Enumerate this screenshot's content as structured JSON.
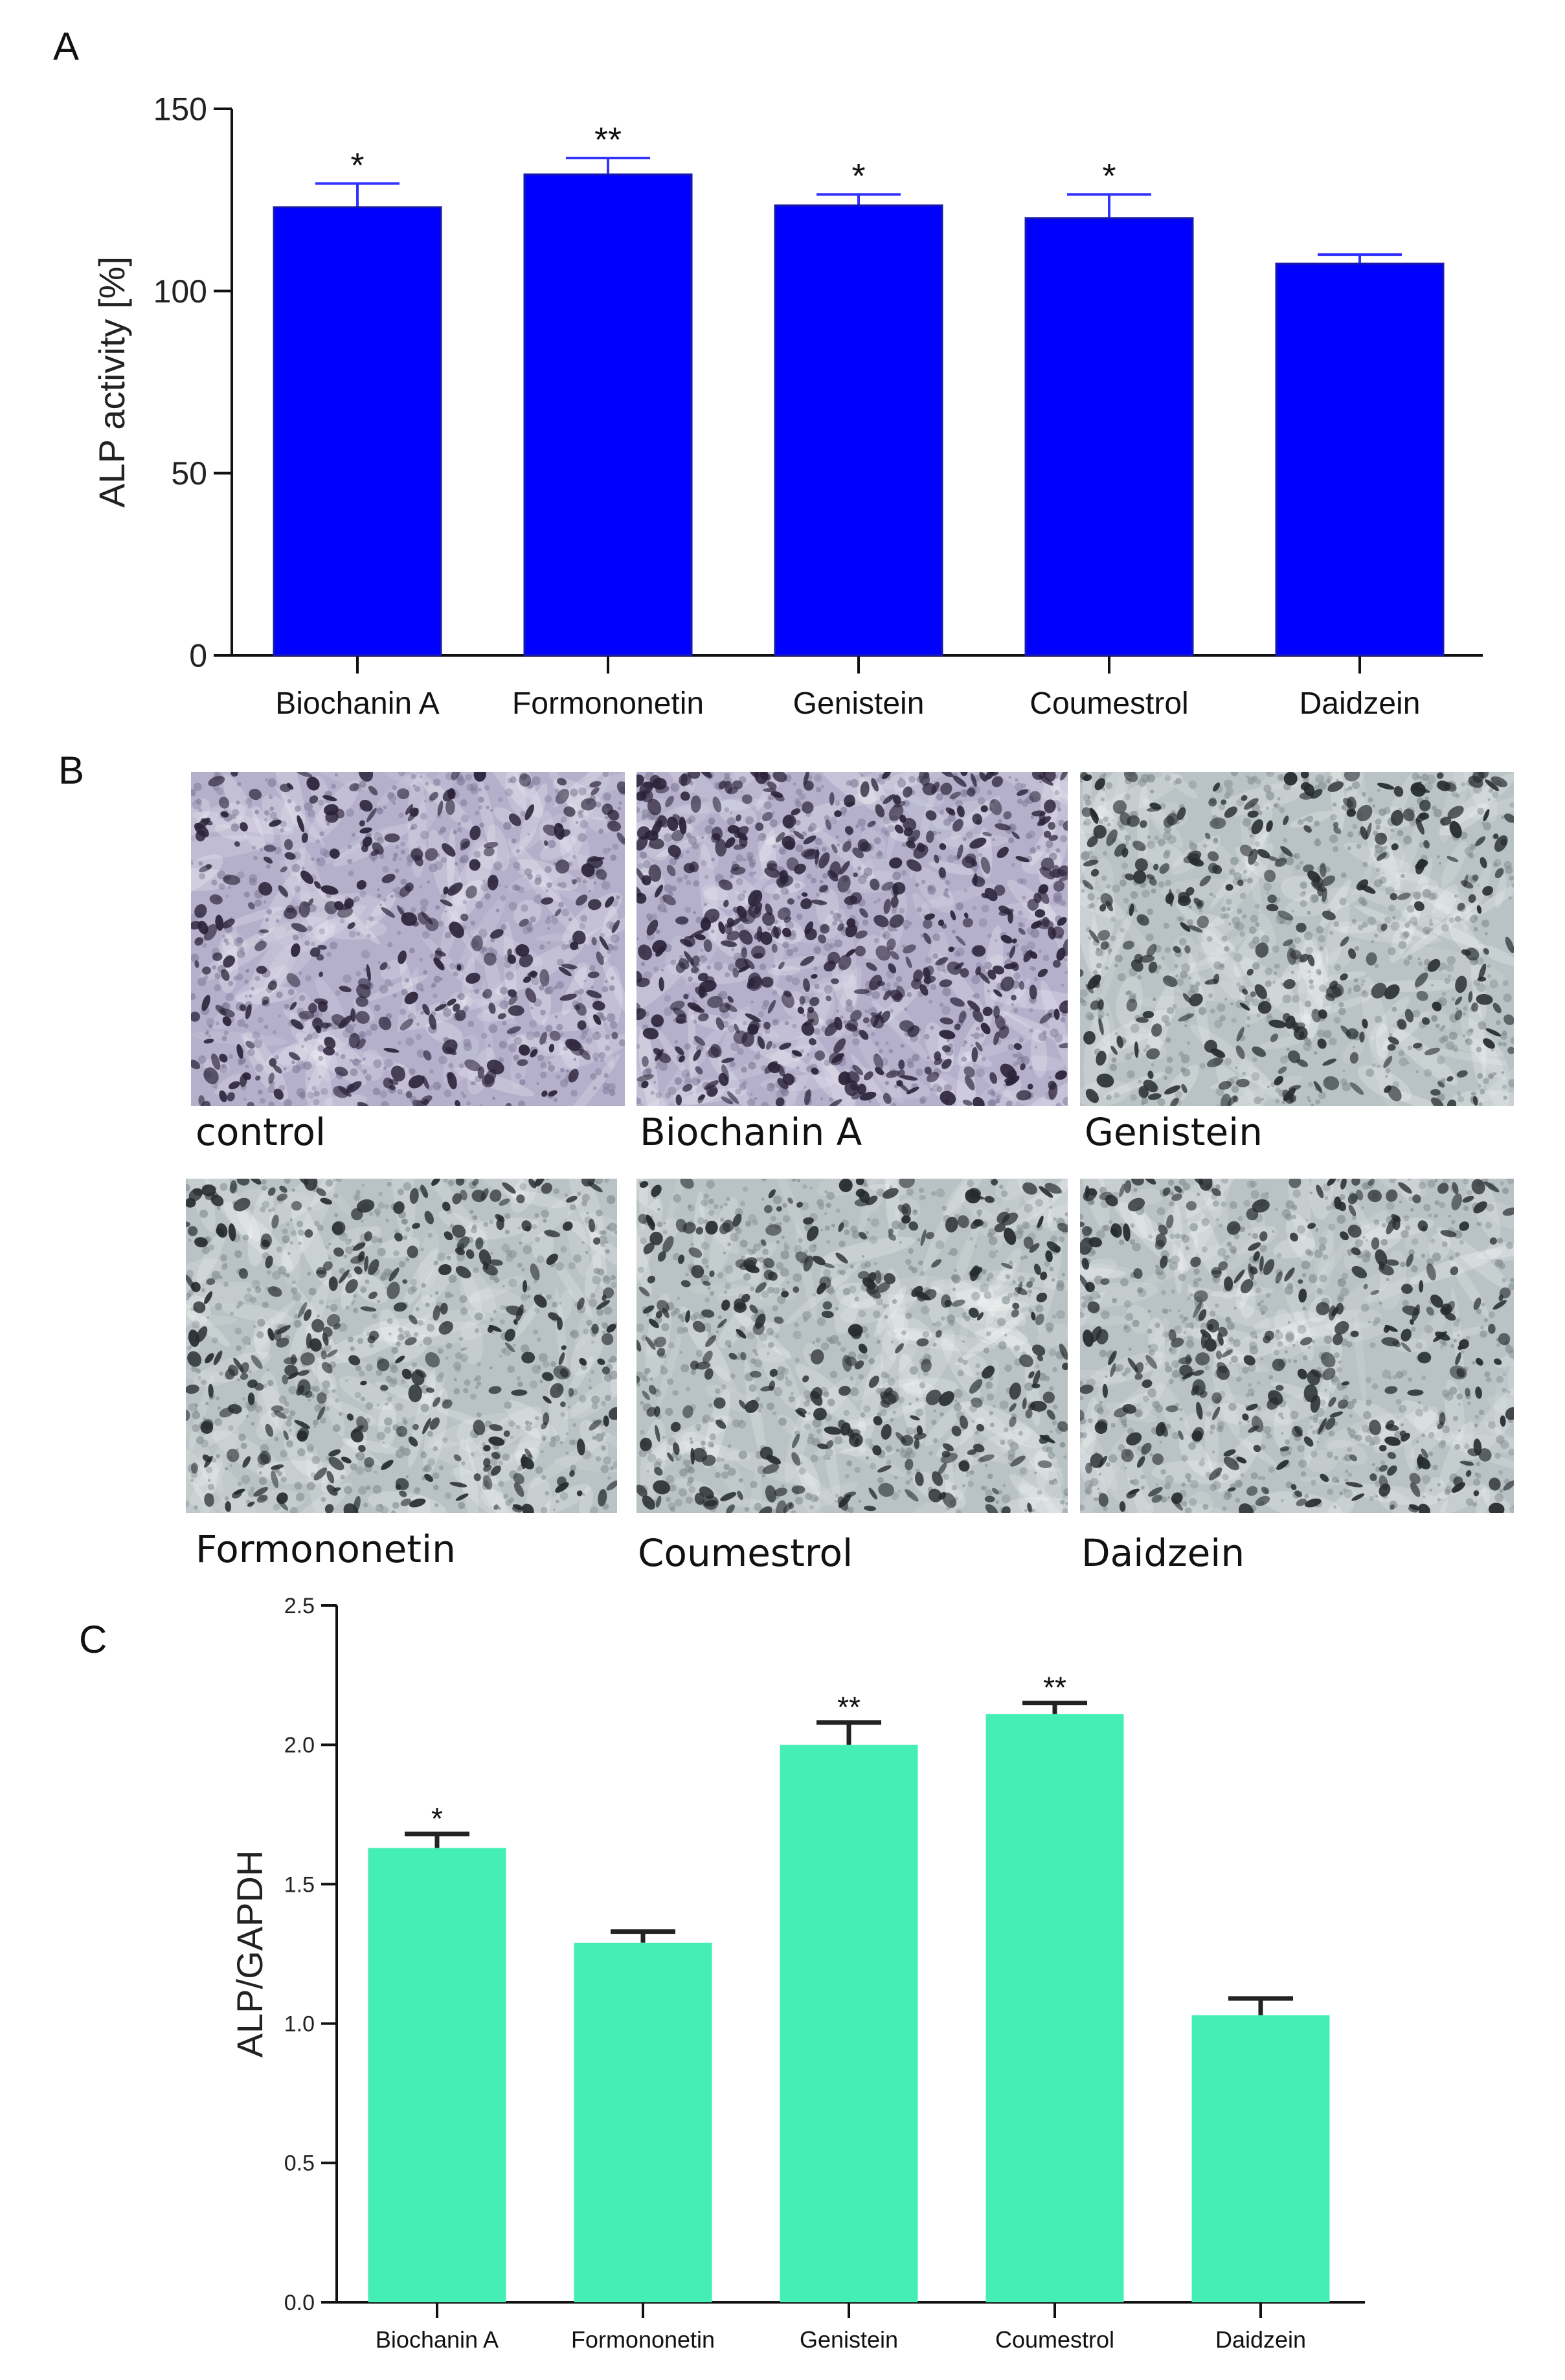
{
  "panel_labels": {
    "a": "A",
    "b": "B",
    "c": "C"
  },
  "colors": {
    "panel_a_bar": "#0000FF",
    "panel_a_error": "#3333FF",
    "panel_c_bar": "#44EEB4",
    "panel_c_error": "#222222",
    "micro_base_purple": "#B4B0CC",
    "micro_base_grey": "#B9C2C4"
  },
  "chart_data": [
    {
      "panel": "A",
      "type": "bar",
      "categories": [
        "Biochanin A",
        "Formononetin",
        "Genistein",
        "Coumestrol",
        "Daidzein"
      ],
      "values": [
        123,
        132,
        123.5,
        120,
        107.5
      ],
      "errors": [
        6.5,
        4.5,
        3,
        6.5,
        2.5
      ],
      "significance": [
        "*",
        "**",
        "*",
        "*",
        ""
      ],
      "ylabel": "ALP activity [%]",
      "xlabel": "",
      "ylim": [
        0,
        150
      ],
      "yticks": [
        "0",
        "50",
        "100",
        "150"
      ],
      "grid": false
    },
    {
      "panel": "C",
      "type": "bar",
      "categories": [
        "Biochanin A",
        "Formononetin",
        "Genistein",
        "Coumestrol",
        "Daidzein"
      ],
      "values": [
        1.63,
        1.29,
        2.0,
        2.11,
        1.03
      ],
      "errors": [
        0.05,
        0.04,
        0.08,
        0.04,
        0.06
      ],
      "significance": [
        "*",
        "",
        "**",
        "**",
        ""
      ],
      "ylabel": "ALP/GAPDH",
      "xlabel": "",
      "ylim": [
        0,
        2.5
      ],
      "yticks": [
        "0.0",
        "0.5",
        "1.0",
        "1.5",
        "2.0",
        "2.5"
      ],
      "grid": false
    }
  ],
  "micrographs": [
    {
      "label": "control",
      "tone": "purple"
    },
    {
      "label": "Biochanin A",
      "tone": "purple"
    },
    {
      "label": "Genistein",
      "tone": "grey"
    },
    {
      "label": "Formononetin",
      "tone": "grey"
    },
    {
      "label": "Coumestrol",
      "tone": "grey"
    },
    {
      "label": "Daidzein",
      "tone": "grey"
    }
  ]
}
